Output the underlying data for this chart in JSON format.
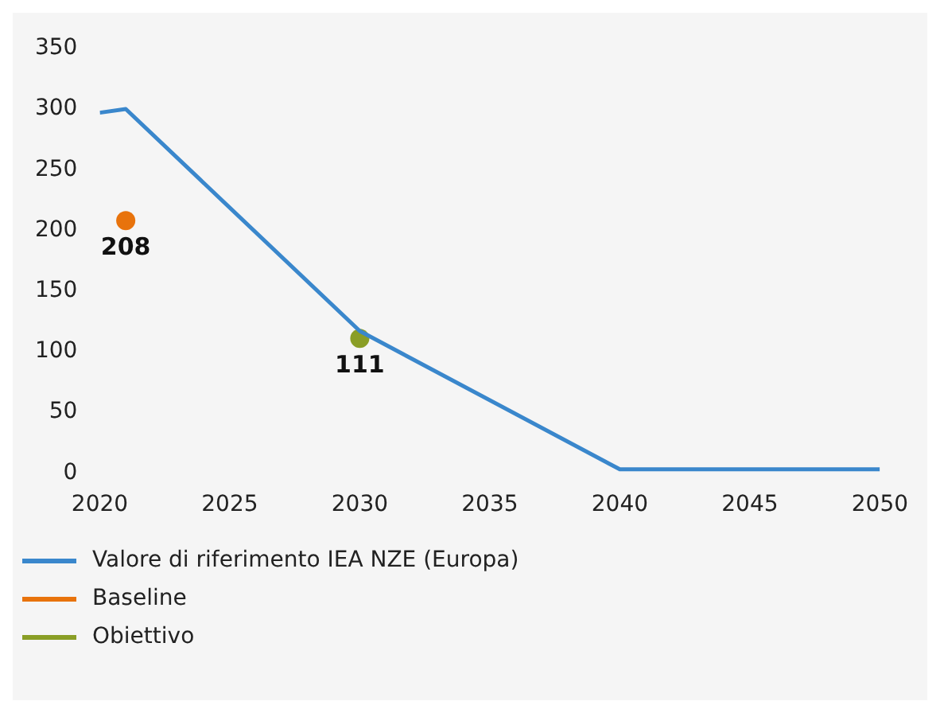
{
  "chart_data": {
    "type": "line",
    "x": [
      2020,
      2021,
      2030,
      2040,
      2050
    ],
    "xlim": [
      2020,
      2050
    ],
    "xticks": [
      2020,
      2025,
      2030,
      2035,
      2040,
      2045,
      2050
    ],
    "ylim": [
      0,
      350
    ],
    "yticks": [
      0,
      50,
      100,
      150,
      200,
      250,
      300,
      350
    ],
    "grid": false,
    "legend": "bottom left",
    "marker": "none",
    "series": [
      {
        "name": "Valore di riferimento IEA NZE (Europa)",
        "color": "#3a87cc",
        "values": [
          297,
          300,
          117,
          3,
          3
        ]
      },
      {
        "name": "Baseline",
        "type": "scatter",
        "color": "#e8730c",
        "x": [
          2021
        ],
        "values": [
          208
        ],
        "value_labels": [
          "208"
        ],
        "marker": "circle"
      },
      {
        "name": "Obiettivo",
        "type": "scatter",
        "color": "#8a9e26",
        "x": [
          2030
        ],
        "values": [
          111
        ],
        "value_labels": [
          "111"
        ],
        "marker": "circle"
      }
    ]
  }
}
